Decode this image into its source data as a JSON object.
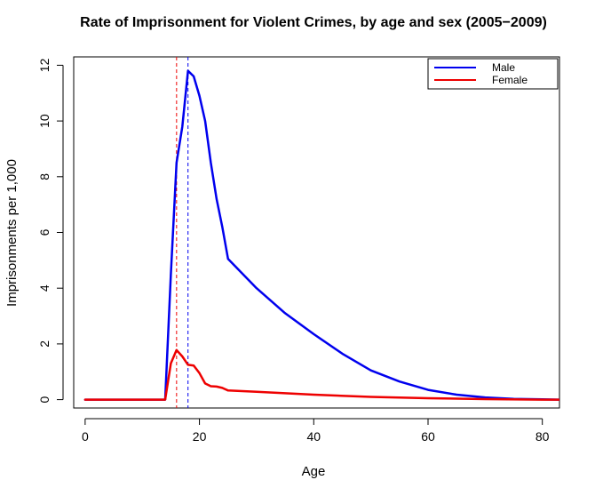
{
  "chart_data": {
    "type": "line",
    "title": "Rate of Imprisonment for Violent Crimes, by age and sex (2005−2009)",
    "xlabel": "Age",
    "ylabel": "Imprisonments per 1,000",
    "xlim": [
      -2,
      83
    ],
    "ylim": [
      -0.3,
      12.3
    ],
    "xticks": [
      0,
      20,
      40,
      60,
      80
    ],
    "yticks": [
      0,
      2,
      4,
      6,
      8,
      10,
      12
    ],
    "grid": false,
    "legend_position": "top-right",
    "series": [
      {
        "name": "Male",
        "color": "#0000ee",
        "x": [
          0,
          14,
          15,
          16,
          17,
          18,
          19,
          20,
          21,
          22,
          23,
          24,
          25,
          30,
          35,
          40,
          45,
          50,
          55,
          60,
          65,
          70,
          75,
          80,
          83
        ],
        "y": [
          0,
          0,
          4.5,
          8.5,
          9.8,
          11.8,
          11.6,
          10.9,
          10.0,
          8.5,
          7.2,
          6.2,
          5.05,
          4.0,
          3.1,
          2.35,
          1.65,
          1.05,
          0.65,
          0.35,
          0.18,
          0.08,
          0.03,
          0.01,
          0.0
        ]
      },
      {
        "name": "Female",
        "color": "#ee0000",
        "x": [
          0,
          14,
          15,
          16,
          17,
          18,
          19,
          20,
          21,
          22,
          23,
          24,
          25,
          30,
          40,
          50,
          60,
          70,
          80,
          83
        ],
        "y": [
          0,
          0,
          1.3,
          1.78,
          1.55,
          1.25,
          1.22,
          0.95,
          0.58,
          0.48,
          0.47,
          0.42,
          0.33,
          0.28,
          0.18,
          0.1,
          0.05,
          0.02,
          0.0,
          0.0
        ]
      }
    ],
    "vlines": [
      {
        "x": 16,
        "color": "#ee0000",
        "style": "dashed"
      },
      {
        "x": 18,
        "color": "#0000ee",
        "style": "dashed"
      }
    ]
  }
}
